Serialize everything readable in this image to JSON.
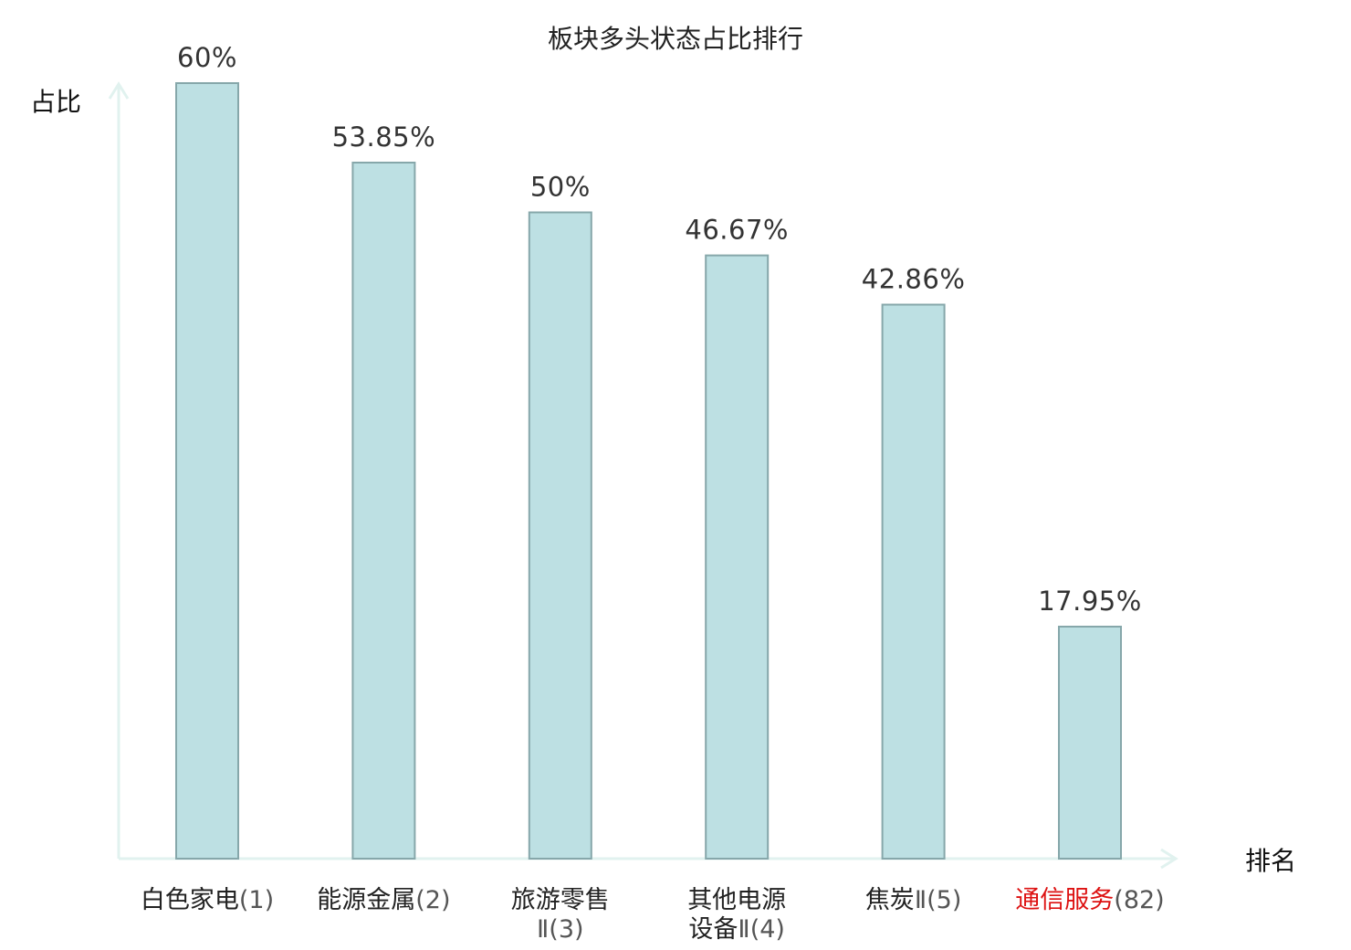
{
  "chart_data": {
    "type": "bar",
    "title": "板块多头状态占比排行",
    "ylabel": "占比",
    "xlabel": "排名",
    "ylim": [
      0,
      60
    ],
    "grid": false,
    "legend": "none",
    "categories": [
      {
        "lines": [
          {
            "name": "白色家电",
            "rank": "(1)"
          }
        ],
        "highlight": false
      },
      {
        "lines": [
          {
            "name": "能源金属",
            "rank": "(2)"
          }
        ],
        "highlight": false
      },
      {
        "lines": [
          {
            "name": "旅游零售",
            "rank": ""
          },
          {
            "name": "",
            "rank": "Ⅱ(3)"
          }
        ],
        "highlight": false
      },
      {
        "lines": [
          {
            "name": "其他电源",
            "rank": ""
          },
          {
            "name": "设备",
            "rank": "Ⅱ(4)"
          }
        ],
        "highlight": false
      },
      {
        "lines": [
          {
            "name": "焦炭",
            "rank": "Ⅱ(5)"
          }
        ],
        "highlight": false
      },
      {
        "lines": [
          {
            "name": "通信服务",
            "rank": "(82)"
          }
        ],
        "highlight": true
      }
    ],
    "values": [
      60,
      53.85,
      50,
      46.67,
      42.86,
      17.95
    ],
    "value_labels": [
      "60%",
      "53.85%",
      "50%",
      "46.67%",
      "42.86%",
      "17.95%"
    ],
    "colors": {
      "bar_fill": "#bde0e3",
      "bar_stroke": "#86a7aa",
      "axis": "#e1f2ef",
      "highlight_label": "#dd1111"
    }
  }
}
